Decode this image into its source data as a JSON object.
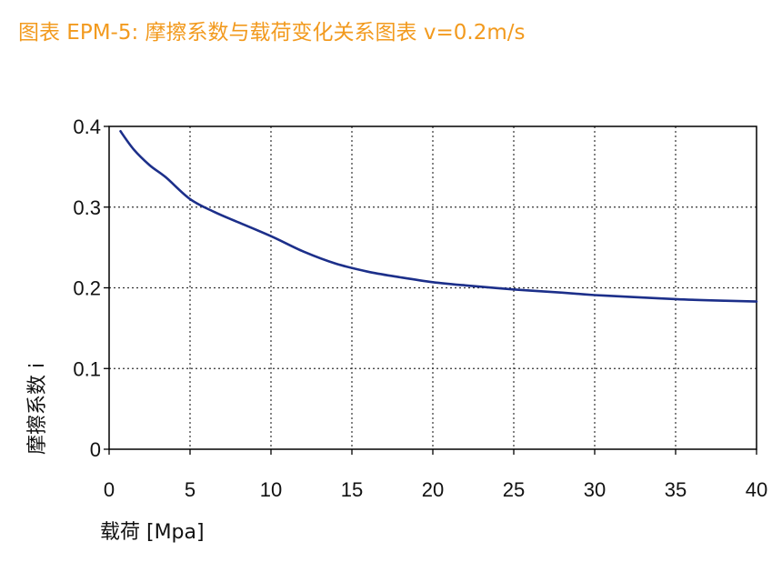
{
  "title": "图表 EPM-5: 摩擦系数与载荷变化关系图表 v=0.2m/s",
  "colors": {
    "title": "#f29a1e",
    "series": "#1c2f8a",
    "axis": "#000000",
    "grid": "#333333"
  },
  "chart_data": {
    "type": "line",
    "title": "图表 EPM-5: 摩擦系数与载荷变化关系图表 v=0.2m/s",
    "xlabel": "载荷 [Mpa]",
    "ylabel": "摩擦系数 i",
    "xlim": [
      0,
      40
    ],
    "ylim": [
      0,
      0.4
    ],
    "xticks": [
      "0",
      "5",
      "10",
      "15",
      "20",
      "25",
      "30",
      "35",
      "40"
    ],
    "yticks": [
      "0",
      "0.1",
      "0.2",
      "0.3",
      "0.4"
    ],
    "grid": true,
    "legend": "none",
    "series": [
      {
        "x": [
          0.7,
          1.5,
          2.5,
          3.5,
          5,
          6.5,
          8,
          10,
          12,
          14,
          16,
          18,
          20,
          22,
          25,
          28,
          30,
          32,
          35,
          38,
          40
        ],
        "y": [
          0.394,
          0.372,
          0.352,
          0.337,
          0.31,
          0.294,
          0.281,
          0.264,
          0.245,
          0.23,
          0.22,
          0.213,
          0.207,
          0.203,
          0.198,
          0.194,
          0.191,
          0.189,
          0.186,
          0.184,
          0.183
        ]
      }
    ]
  }
}
